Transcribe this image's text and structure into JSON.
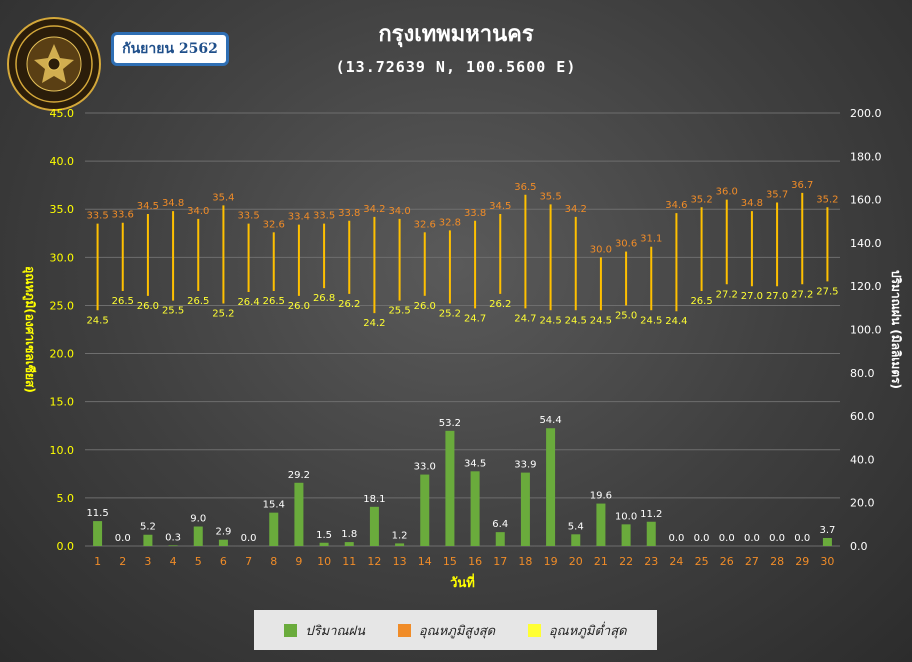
{
  "header": {
    "month_label": "กันยายน 2562",
    "logo_text": "กรมอุตุนิยมวิทยา METEOROLOGICAL DEPARTMENT"
  },
  "legend": {
    "rain": "ปริมาณฝน",
    "tmax": "อุณหภูมิสูงสุด",
    "tmin": "อุณหภูมิต่ำสุด"
  },
  "colors": {
    "rain": "#6aab3c",
    "tmax": "#f08c28",
    "tmin": "#ffff33",
    "range_line": "#ffc000",
    "axis_text": "#ffff00",
    "tick_text_x": "#f08c28"
  },
  "chart_data": {
    "type": "bar",
    "title": "กรุงเทพมหานคร",
    "subtitle": "(13.72639 N, 100.5600 E)",
    "xlabel": "วันที่",
    "ylabel_left": "อุณหภูมิ(องศาเซลเซียส)",
    "ylabel_right": "ปริมาณฝน (มิลลิเมตร)",
    "ylim_left": [
      0,
      45
    ],
    "ylim_right": [
      0,
      200
    ],
    "yticks_left": [
      "0.0",
      "5.0",
      "10.0",
      "15.0",
      "20.0",
      "25.0",
      "30.0",
      "35.0",
      "40.0",
      "45.0"
    ],
    "yticks_right": [
      "0.0",
      "20.0",
      "40.0",
      "60.0",
      "80.0",
      "100.0",
      "120.0",
      "140.0",
      "160.0",
      "180.0",
      "200.0"
    ],
    "grid": true,
    "legend_position": "bottom",
    "x": [
      1,
      2,
      3,
      4,
      5,
      6,
      7,
      8,
      9,
      10,
      11,
      12,
      13,
      14,
      15,
      16,
      17,
      18,
      19,
      20,
      21,
      22,
      23,
      24,
      25,
      26,
      27,
      28,
      29,
      30
    ],
    "series": [
      {
        "name": "ปริมาณฝน",
        "kind": "bar",
        "axis": "right",
        "values": [
          11.5,
          0.0,
          5.2,
          0.3,
          9.0,
          2.9,
          0.0,
          15.4,
          29.2,
          1.5,
          1.8,
          18.1,
          1.2,
          33.0,
          53.2,
          34.5,
          6.4,
          33.9,
          54.4,
          5.4,
          19.6,
          10.0,
          11.2,
          0.0,
          0.0,
          0.0,
          0.0,
          0.0,
          0.0,
          3.7
        ]
      },
      {
        "name": "อุณหภูมิสูงสุด",
        "kind": "range-high",
        "axis": "left",
        "values": [
          33.5,
          33.6,
          34.5,
          34.8,
          34.0,
          35.4,
          33.5,
          32.6,
          33.4,
          33.5,
          33.8,
          34.2,
          34.0,
          32.6,
          32.8,
          33.8,
          34.5,
          36.5,
          35.5,
          34.2,
          30.0,
          30.6,
          31.1,
          34.6,
          35.2,
          36.0,
          34.8,
          35.7,
          36.7,
          35.2
        ]
      },
      {
        "name": "อุณหภูมิต่ำสุด",
        "kind": "range-low",
        "axis": "left",
        "values": [
          24.5,
          26.5,
          26.0,
          25.5,
          26.5,
          25.2,
          26.4,
          26.5,
          26.0,
          26.8,
          26.2,
          24.2,
          25.5,
          26.0,
          25.2,
          24.7,
          26.2,
          24.7,
          24.5,
          24.5,
          24.5,
          25.0,
          24.5,
          24.4,
          26.5,
          27.2,
          27.0,
          27.0,
          27.2,
          27.5
        ]
      }
    ]
  }
}
